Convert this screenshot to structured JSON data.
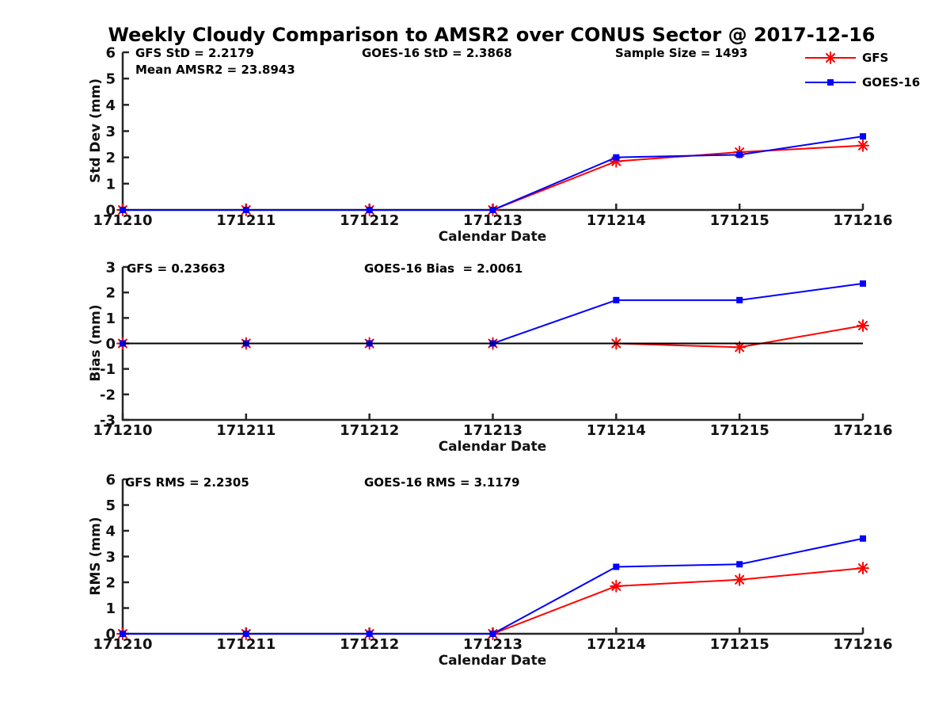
{
  "title": "Weekly Cloudy Comparison to AMSR2 over CONUS Sector @ 2017-12-16",
  "colors": {
    "gfs": "#FF0000",
    "goes16": "#0000FF",
    "axis": "#262626",
    "tick_text": "#111111",
    "zero_line": "#000000"
  },
  "legend": {
    "items": [
      {
        "label": "GFS",
        "marker": "asterisk",
        "color": "#FF0000"
      },
      {
        "label": "GOES-16",
        "marker": "square",
        "color": "#0000FF"
      }
    ]
  },
  "chart_data": [
    {
      "type": "line",
      "title": "",
      "xlabel": "Calendar Date",
      "ylabel": "Std Dev (mm)",
      "ylim": [
        0,
        6
      ],
      "yticks": [
        0,
        1,
        2,
        3,
        4,
        5,
        6
      ],
      "categories": [
        "171210",
        "171211",
        "171212",
        "171213",
        "171214",
        "171215",
        "171216"
      ],
      "series": [
        {
          "name": "GFS",
          "color": "#FF0000",
          "marker": "asterisk",
          "values": [
            0,
            0,
            0,
            0,
            1.85,
            2.2,
            2.45
          ]
        },
        {
          "name": "GOES-16",
          "color": "#0000FF",
          "marker": "square",
          "values": [
            0,
            0,
            0,
            0,
            2.0,
            2.1,
            2.8
          ]
        }
      ],
      "zero_line": false,
      "grid": false,
      "legend_position": "top-right",
      "annotations": [
        {
          "text": "GFS StD = 2.2179"
        },
        {
          "text": "Mean AMSR2 = 23.8943"
        },
        {
          "text": "GOES-16 StD = 2.3868"
        },
        {
          "text": "Sample Size = 1493"
        }
      ]
    },
    {
      "type": "line",
      "title": "",
      "xlabel": "Calendar Date",
      "ylabel": "Bias (mm)",
      "ylim": [
        -3,
        3
      ],
      "yticks": [
        -3,
        -2,
        -1,
        0,
        1,
        2,
        3
      ],
      "categories": [
        "171210",
        "171211",
        "171212",
        "171213",
        "171214",
        "171215",
        "171216"
      ],
      "series": [
        {
          "name": "GFS",
          "color": "#FF0000",
          "marker": "asterisk",
          "values": [
            0,
            0,
            0,
            0,
            0.0,
            -0.15,
            0.7
          ]
        },
        {
          "name": "GOES-16",
          "color": "#0000FF",
          "marker": "square",
          "values": [
            0,
            0,
            0,
            0,
            1.7,
            1.7,
            2.35
          ]
        }
      ],
      "zero_line": true,
      "grid": false,
      "annotations": [
        {
          "text": "GFS = 0.23663"
        },
        {
          "text": "GOES-16 Bias  = 2.0061"
        }
      ]
    },
    {
      "type": "line",
      "title": "",
      "xlabel": "Calendar Date",
      "ylabel": "RMS (mm)",
      "ylim": [
        0,
        6
      ],
      "yticks": [
        0,
        1,
        2,
        3,
        4,
        5,
        6
      ],
      "categories": [
        "171210",
        "171211",
        "171212",
        "171213",
        "171214",
        "171215",
        "171216"
      ],
      "series": [
        {
          "name": "GFS",
          "color": "#FF0000",
          "marker": "asterisk",
          "values": [
            0,
            0,
            0,
            0,
            1.85,
            2.1,
            2.55
          ]
        },
        {
          "name": "GOES-16",
          "color": "#0000FF",
          "marker": "square",
          "values": [
            0,
            0,
            0,
            0,
            2.6,
            2.7,
            3.7
          ]
        }
      ],
      "zero_line": false,
      "grid": false,
      "annotations": [
        {
          "text": "GFS RMS = 2.2305"
        },
        {
          "text": "GOES-16 RMS = 3.1179"
        }
      ]
    }
  ]
}
